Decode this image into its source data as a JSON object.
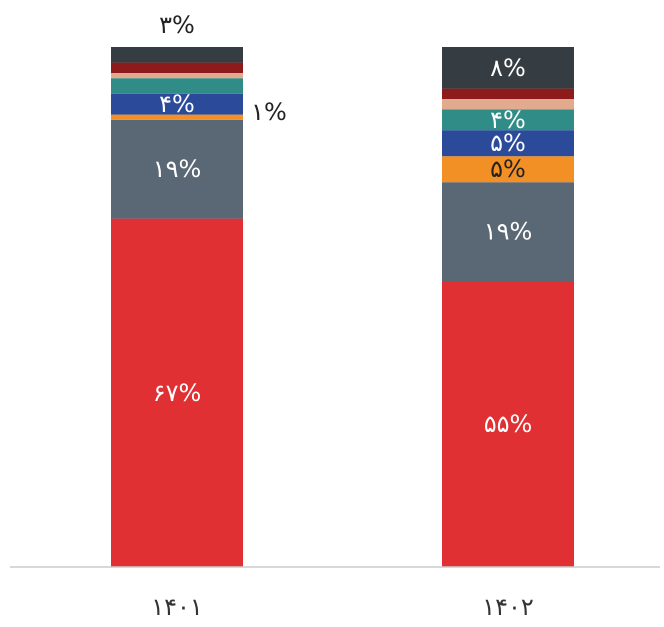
{
  "chart_data": {
    "type": "bar",
    "stacked": true,
    "categories": [
      "۱۴۰۱",
      "۱۴۰۲"
    ],
    "ylim": [
      0,
      100
    ],
    "grid": false,
    "legend": "none",
    "series": [
      {
        "color": "#e03033",
        "values": [
          67,
          55
        ],
        "labels": [
          "۶۷%",
          "۵۵%"
        ],
        "label_color": "#ffffff",
        "label_position": "inside"
      },
      {
        "color": "#5a6774",
        "values": [
          19,
          19
        ],
        "labels": [
          "۱۹%",
          "۱۹%"
        ],
        "label_color": "#ffffff",
        "label_position": "inside"
      },
      {
        "color": "#f28f25",
        "values": [
          1,
          5
        ],
        "labels": [
          "۱%",
          "۵%"
        ],
        "label_color": "#222222",
        "label_position": [
          "outside-right",
          "inside"
        ]
      },
      {
        "color": "#2c4a9a",
        "values": [
          4,
          5
        ],
        "labels": [
          "۴%",
          "۵%"
        ],
        "label_color": "#ffffff",
        "label_position": "inside"
      },
      {
        "color": "#2f8c86",
        "values": [
          3,
          4
        ],
        "labels": [
          "",
          "۴%"
        ],
        "label_color": "#ffffff",
        "label_position": "inside"
      },
      {
        "color": "#e2ab8e",
        "values": [
          1,
          2
        ],
        "labels": [
          "",
          ""
        ],
        "label_color": "#ffffff",
        "label_position": "inside"
      },
      {
        "color": "#8e1b1b",
        "values": [
          2,
          2
        ],
        "labels": [
          "",
          ""
        ],
        "label_color": "#ffffff",
        "label_position": "inside"
      },
      {
        "color": "#353c42",
        "values": [
          3,
          8
        ],
        "labels": [
          "۳%",
          "۸%"
        ],
        "label_color": "#ffffff",
        "label_position": [
          "above",
          "inside"
        ]
      }
    ],
    "axis_color": "#c9ccd0",
    "tick_label_color": "#333333"
  }
}
